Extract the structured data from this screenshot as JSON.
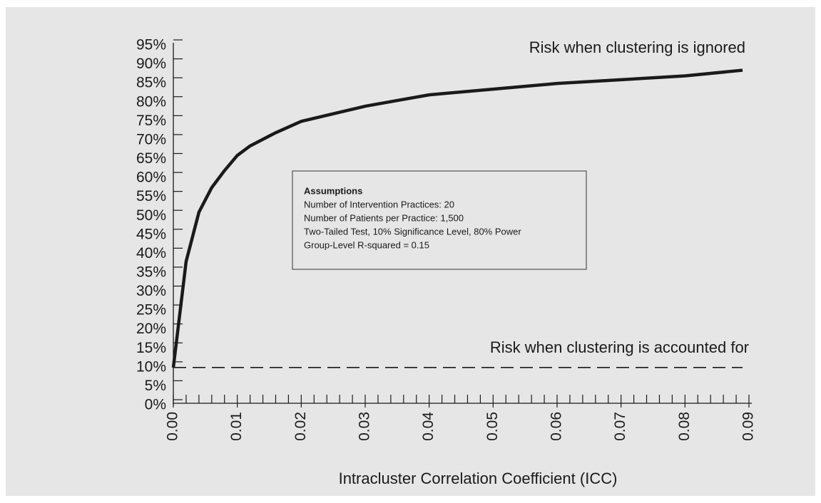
{
  "chart_data": {
    "type": "line",
    "xlabel": "Intracluster Correlation Coefficient (ICC)",
    "x": [
      0,
      0.002,
      0.004,
      0.006,
      0.008,
      0.01,
      0.012,
      0.016,
      0.02,
      0.025,
      0.03,
      0.035,
      0.04,
      0.05,
      0.06,
      0.07,
      0.08,
      0.089
    ],
    "series": [
      {
        "name": "Risk when clustering is ignored",
        "color": "#1a1a1a",
        "dashed": false,
        "values": [
          10,
          38,
          51,
          57.5,
          62,
          66,
          68.5,
          72,
          75,
          77,
          79,
          80.5,
          82,
          83.5,
          85,
          86,
          87,
          88.5
        ]
      },
      {
        "name": "Risk when clustering is accounted for",
        "color": "#1a1a1a",
        "dashed": true,
        "values": [
          10,
          10,
          10,
          10,
          10,
          10,
          10,
          10,
          10,
          10,
          10,
          10,
          10,
          10,
          10,
          10,
          10,
          10
        ]
      }
    ],
    "xlim": [
      0,
      0.09
    ],
    "xticks": [
      {
        "value": 0,
        "label": "0.00"
      },
      0.01,
      0.02,
      0.03,
      0.04,
      0.05,
      0.06,
      0.07,
      0.08,
      0.09
    ],
    "xminor_ticks": [
      0,
      0.002,
      0.004,
      0.006,
      0.008,
      0.01,
      0.012,
      0.014,
      0.016,
      0.018,
      0.02,
      0.022,
      0.024,
      0.026,
      0.028,
      0.03,
      0.032,
      0.034,
      0.036,
      0.038,
      0.04,
      0.042,
      0.044,
      0.046,
      0.048,
      0.05,
      0.052,
      0.054,
      0.056,
      0.058,
      0.06,
      0.062,
      0.064,
      0.066,
      0.068,
      0.07,
      0.072,
      0.074,
      0.076,
      0.078,
      0.08,
      0.082,
      0.084,
      0.086,
      0.088,
      0.09
    ],
    "ylim": [
      0,
      95
    ],
    "yticks": [
      {
        "value": 0,
        "label": "0%"
      },
      {
        "value": 5,
        "label": "5%"
      },
      {
        "value": 10,
        "label": "10%"
      },
      {
        "value": 15,
        "label": "15%"
      },
      {
        "value": 20,
        "label": "20%"
      },
      {
        "value": 25,
        "label": "25%"
      },
      {
        "value": 30,
        "label": "30%"
      },
      {
        "value": 35,
        "label": "35%"
      },
      {
        "value": 40,
        "label": "40%"
      },
      {
        "value": 45,
        "label": "45%"
      },
      {
        "value": 50,
        "label": "50%"
      },
      {
        "value": 55,
        "label": "55%"
      },
      {
        "value": 60,
        "label": "60%"
      },
      {
        "value": 65,
        "label": "65%"
      },
      {
        "value": 70,
        "label": "70%"
      },
      {
        "value": 75,
        "label": "75%"
      },
      {
        "value": 80,
        "label": "80%"
      },
      {
        "value": 85,
        "label": "85%"
      },
      {
        "value": 90,
        "label": "90%"
      },
      {
        "value": 95,
        "label": "95%"
      }
    ],
    "assumptions": {
      "title": "Assumptions",
      "lines": [
        "Number of  Intervention Practices: 20",
        "Number of Patients per Practice: 1,500",
        "Two-Tailed Test, 10% Significance Level, 80% Power",
        "Group-Level R-squared = 0.15"
      ]
    }
  }
}
